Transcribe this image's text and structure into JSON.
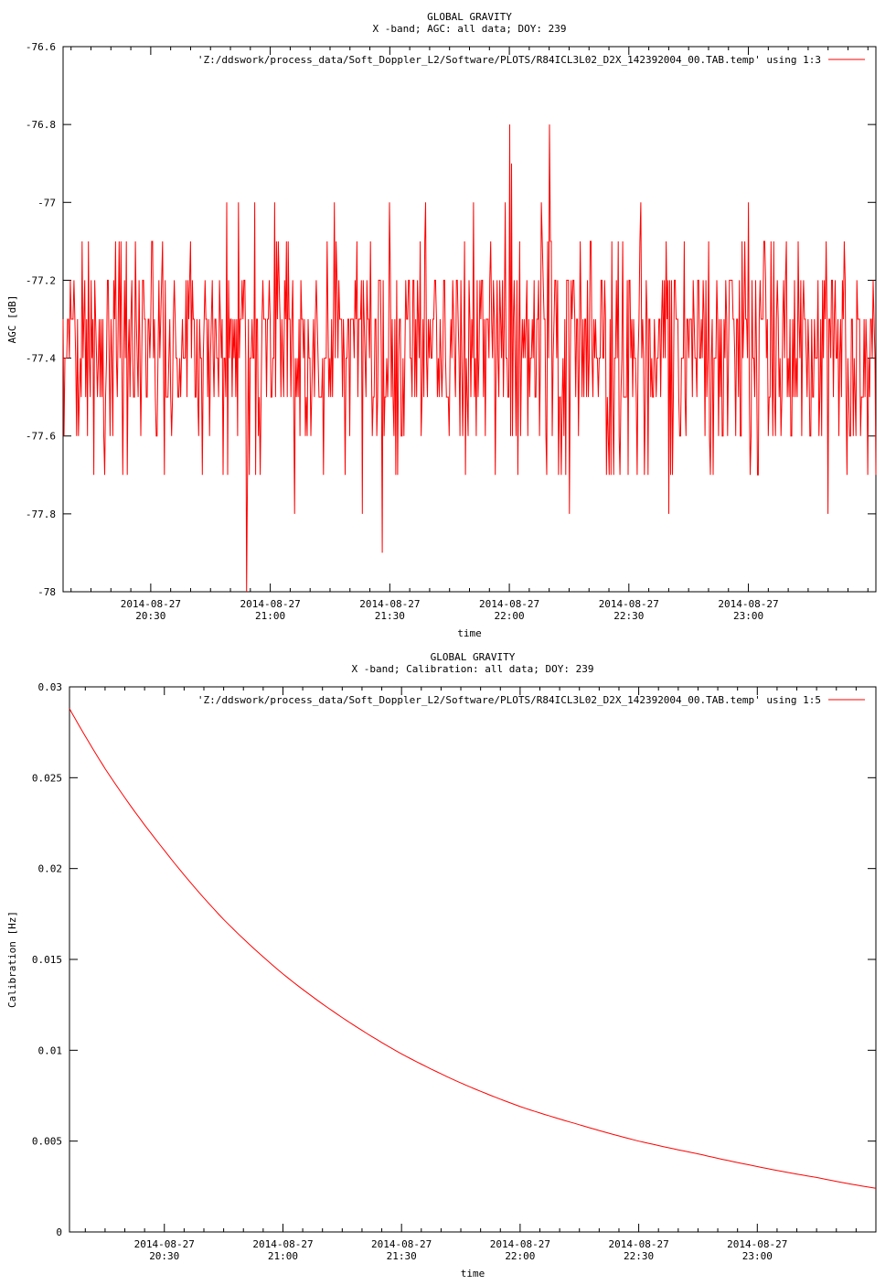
{
  "chart_data": [
    {
      "type": "line",
      "title": "GLOBAL GRAVITY",
      "subtitle": "X -band; AGC: all data; DOY: 239",
      "xlabel": "time",
      "ylabel": "AGC [dB]",
      "ylim": [
        -78,
        -76.6
      ],
      "yticks": [
        -76.6,
        -76.8,
        -77,
        -77.2,
        -77.4,
        -77.6,
        -77.8,
        -78
      ],
      "ytick_labels": [
        "-76.6",
        "-76.8",
        "-77",
        "-77.2",
        "-77.4",
        "-77.6",
        "-77.8",
        "-78"
      ],
      "xlim_minutes": [
        1208,
        1412
      ],
      "xticks_minutes": [
        1230,
        1260,
        1290,
        1320,
        1350,
        1380
      ],
      "xtick_dates": [
        "2014-08-27",
        "2014-08-27",
        "2014-08-27",
        "2014-08-27",
        "2014-08-27",
        "2014-08-27"
      ],
      "xtick_times": [
        "20:30",
        "21:00",
        "21:30",
        "22:00",
        "22:30",
        "23:00"
      ],
      "legend": {
        "label": "'Z:/ddswork/process_data/Soft_Doppler_L2/Software/PLOTS/R84ICL3L02_D2X_142392004_00.TAB.temp' using 1:3",
        "position": "top-right"
      },
      "grid": false,
      "series": [
        {
          "color": "#ff0000",
          "noise": {
            "levels": [
              -77.1,
              -77.2,
              -77.3,
              -77.4,
              -77.5,
              -77.6,
              -77.7
            ],
            "weights": [
              0.06,
              0.14,
              0.25,
              0.24,
              0.17,
              0.1,
              0.04
            ],
            "samples": 900
          },
          "spikes": [
            {
              "t": 1249,
              "y": -77.0
            },
            {
              "t": 1252,
              "y": -77.0
            },
            {
              "t": 1254,
              "y": -78.0
            },
            {
              "t": 1256,
              "y": -77.0
            },
            {
              "t": 1261,
              "y": -77.0
            },
            {
              "t": 1266,
              "y": -77.8
            },
            {
              "t": 1276,
              "y": -77.0
            },
            {
              "t": 1283,
              "y": -77.8
            },
            {
              "t": 1288,
              "y": -77.9
            },
            {
              "t": 1290,
              "y": -77.0
            },
            {
              "t": 1299,
              "y": -77.0
            },
            {
              "t": 1311,
              "y": -77.0
            },
            {
              "t": 1319,
              "y": -77.0
            },
            {
              "t": 1320,
              "y": -76.8
            },
            {
              "t": 1320.5,
              "y": -76.9
            },
            {
              "t": 1328,
              "y": -77.0
            },
            {
              "t": 1330,
              "y": -76.8
            },
            {
              "t": 1335,
              "y": -77.8
            },
            {
              "t": 1353,
              "y": -77.0
            },
            {
              "t": 1360,
              "y": -77.8
            },
            {
              "t": 1380,
              "y": -77.0
            },
            {
              "t": 1400,
              "y": -77.8
            }
          ]
        }
      ]
    },
    {
      "type": "line",
      "title": "GLOBAL GRAVITY",
      "subtitle": "X -band; Calibration: all data; DOY: 239",
      "xlabel": "time",
      "ylabel": "Calibration [Hz]",
      "ylim": [
        0,
        0.03
      ],
      "yticks": [
        0,
        0.005,
        0.01,
        0.015,
        0.02,
        0.025,
        0.03
      ],
      "ytick_labels": [
        "0",
        "0.005",
        "0.01",
        "0.015",
        "0.02",
        "0.025",
        "0.03"
      ],
      "xlim_minutes": [
        1206,
        1410
      ],
      "xticks_minutes": [
        1230,
        1260,
        1290,
        1320,
        1350,
        1380
      ],
      "xtick_dates": [
        "2014-08-27",
        "2014-08-27",
        "2014-08-27",
        "2014-08-27",
        "2014-08-27",
        "2014-08-27"
      ],
      "xtick_times": [
        "20:30",
        "21:00",
        "21:30",
        "22:00",
        "22:30",
        "23:00"
      ],
      "legend": {
        "label": "'Z:/ddswork/process_data/Soft_Doppler_L2/Software/PLOTS/R84ICL3L02_D2X_142392004_00.TAB.temp' using 1:5",
        "position": "top-right"
      },
      "grid": false,
      "series": [
        {
          "color": "#ff0000",
          "x_minutes": [
            1206,
            1215,
            1230,
            1245,
            1260,
            1275,
            1290,
            1305,
            1320,
            1335,
            1350,
            1365,
            1380,
            1395,
            1410
          ],
          "values": [
            0.0288,
            0.0255,
            0.021,
            0.0172,
            0.0142,
            0.0118,
            0.0098,
            0.0082,
            0.0069,
            0.0059,
            0.005,
            0.0043,
            0.0036,
            0.003,
            0.0024
          ]
        }
      ]
    }
  ]
}
